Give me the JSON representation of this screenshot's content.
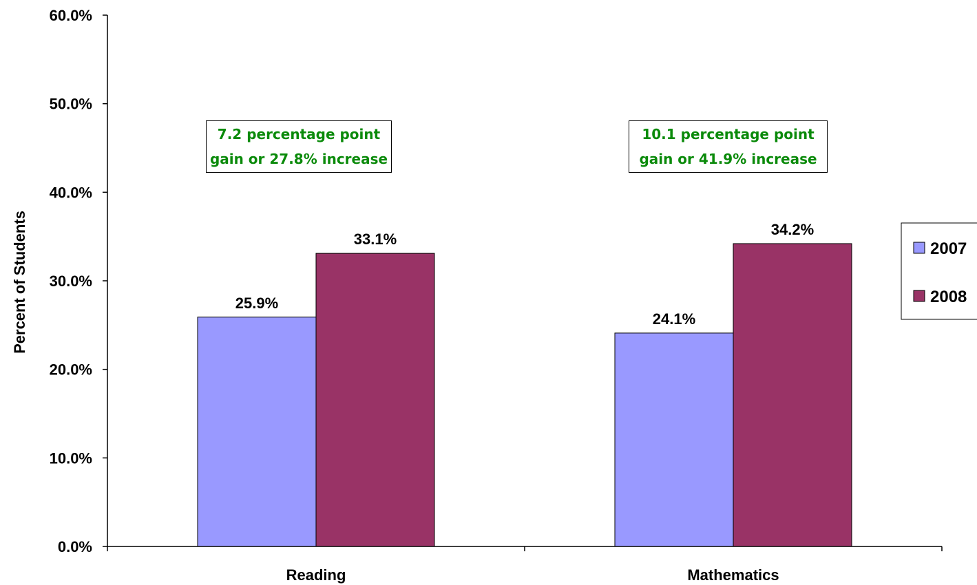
{
  "chart_data": {
    "type": "bar",
    "categories": [
      "Reading",
      "Mathematics"
    ],
    "series": [
      {
        "name": "2007",
        "values": [
          25.9,
          24.1
        ],
        "color": "#9999ff",
        "labels": [
          "25.9%",
          "24.1%"
        ]
      },
      {
        "name": "2008",
        "values": [
          33.1,
          34.2
        ],
        "color": "#993366",
        "labels": [
          "33.1%",
          "34.2%"
        ]
      }
    ],
    "ylabel": "Percent of Students",
    "xlabel": "",
    "ylim": [
      0,
      60
    ],
    "yticks": [
      0,
      10,
      20,
      30,
      40,
      50,
      60
    ],
    "ytick_labels": [
      "0.0%",
      "10.0%",
      "20.0%",
      "30.0%",
      "40.0%",
      "50.0%",
      "60.0%"
    ],
    "grid": false,
    "legend_position": "right",
    "annotations": [
      {
        "category": "Reading",
        "lines": [
          "7.2 percentage point",
          "gain or 27.8% increase"
        ],
        "color": "#0a8a0a"
      },
      {
        "category": "Mathematics",
        "lines": [
          "10.1 percentage point",
          "gain or 41.9% increase"
        ],
        "color": "#0a8a0a"
      }
    ]
  }
}
